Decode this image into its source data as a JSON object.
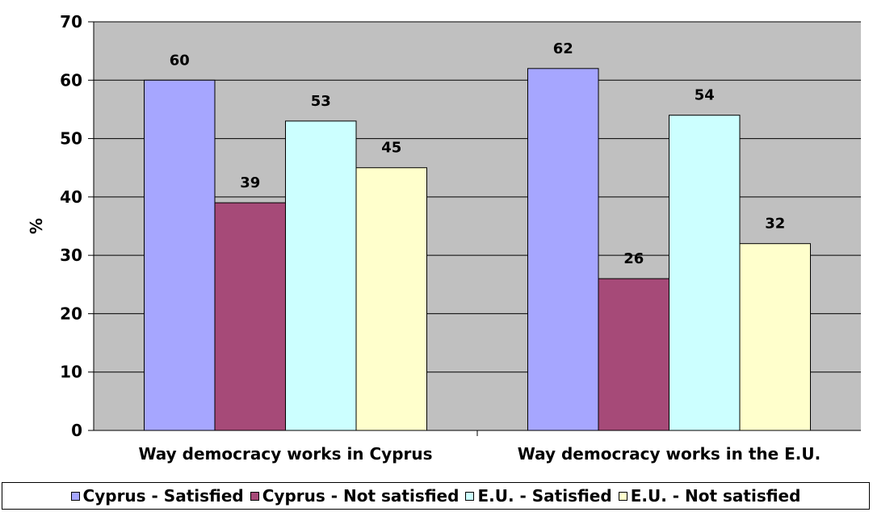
{
  "chart_data": {
    "type": "bar",
    "categories": [
      "Way democracy works in Cyprus",
      "Way democracy works in the E.U."
    ],
    "series": [
      {
        "name": "Cyprus - Satisfied",
        "values": [
          60,
          62
        ],
        "color": "#a6a6ff"
      },
      {
        "name": "Cyprus - Not satisfied",
        "values": [
          39,
          26
        ],
        "color": "#a64a78"
      },
      {
        "name": "E.U. - Satisfied",
        "values": [
          53,
          54
        ],
        "color": "#ccffff"
      },
      {
        "name": "E.U. - Not satisfied",
        "values": [
          45,
          32
        ],
        "color": "#ffffcc"
      }
    ],
    "title": "",
    "xlabel": "",
    "ylabel": "%",
    "ylim": [
      0,
      70
    ],
    "yticks": [
      "0",
      "10",
      "20",
      "30",
      "40",
      "50",
      "60",
      "70"
    ],
    "grid": true,
    "plot_background": "#c0c0c0",
    "legend_position": "bottom"
  }
}
